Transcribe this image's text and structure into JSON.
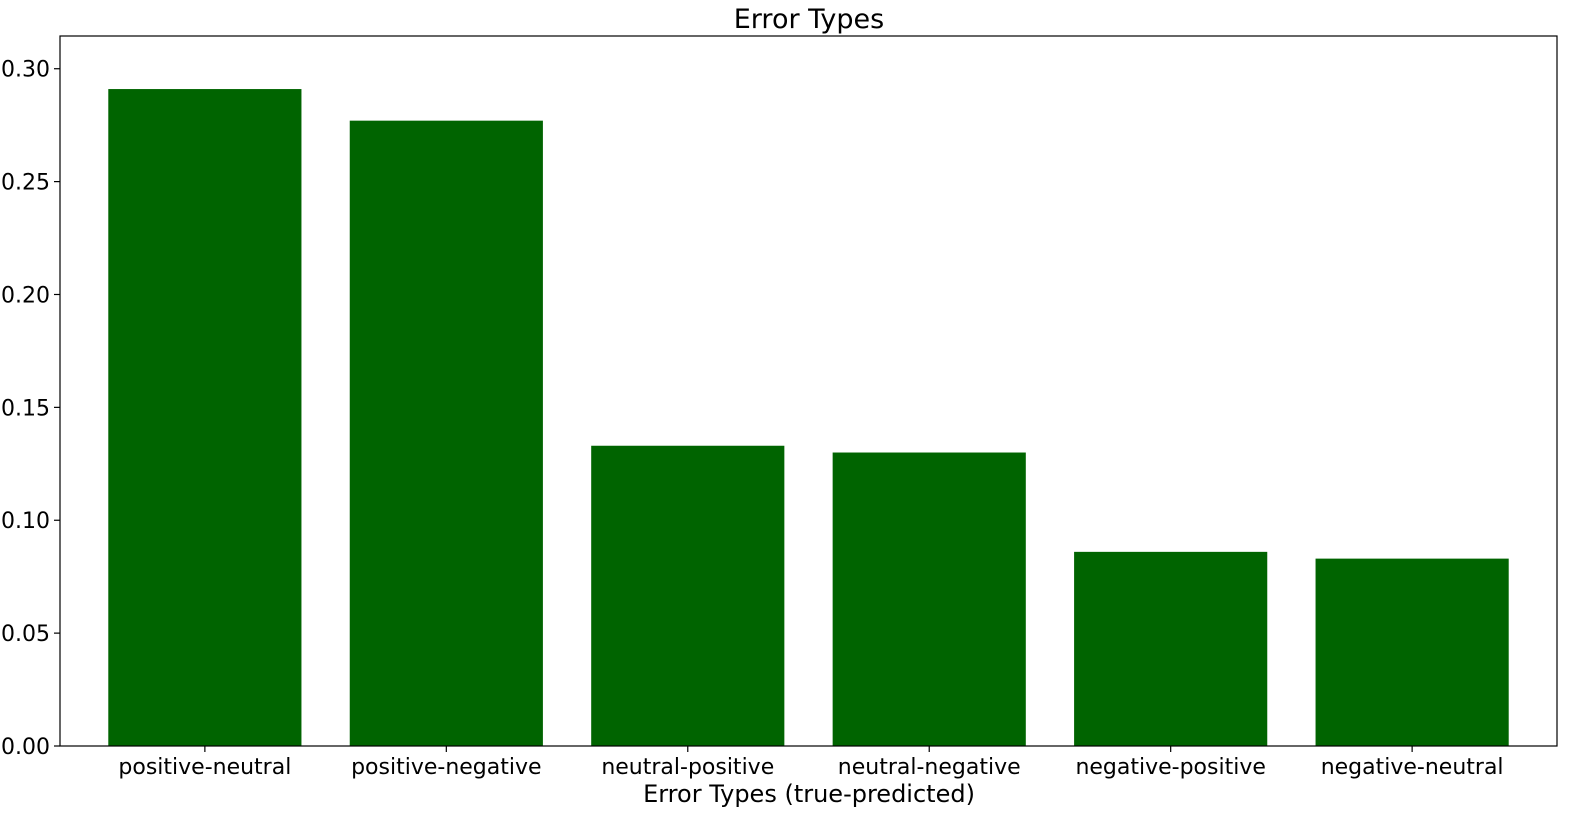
{
  "chart_data": {
    "type": "bar",
    "title": "Error Types",
    "xlabel": "Error Types (true-predicted)",
    "ylabel": "",
    "categories": [
      "positive-neutral",
      "positive-negative",
      "neutral-positive",
      "neutral-negative",
      "negative-positive",
      "negative-neutral"
    ],
    "values": [
      0.291,
      0.277,
      0.133,
      0.13,
      0.086,
      0.083
    ],
    "ylim": [
      0,
      0.3145
    ],
    "yticks": [
      "0.00",
      "0.05",
      "0.10",
      "0.15",
      "0.20",
      "0.25",
      "0.30"
    ],
    "bar_color": "#006400",
    "grid": false,
    "legend": "none"
  }
}
